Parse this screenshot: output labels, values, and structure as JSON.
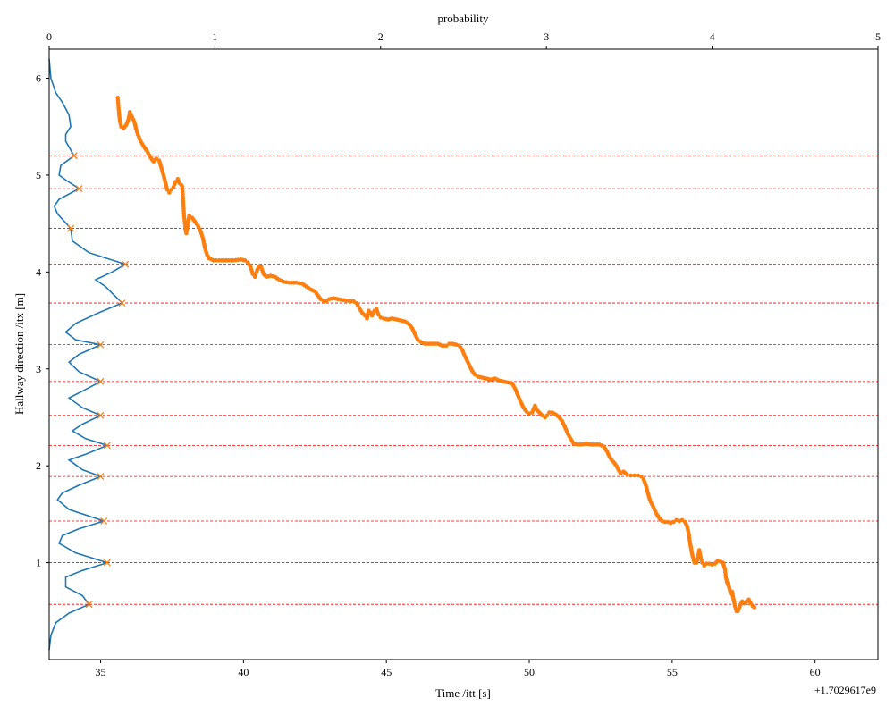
{
  "chart_data": {
    "type": "scatter",
    "xlabel": "Time /itt [s]",
    "ylabel": "Hallway direction /itx [m]",
    "top_xlabel": "probability",
    "x_offset_text": "+1.7029617e9",
    "xlim": [
      33.2,
      62.2
    ],
    "ylim": [
      0.0,
      6.3
    ],
    "top_xlim": [
      0,
      5
    ],
    "x_ticks": [
      35,
      40,
      45,
      50,
      55,
      60
    ],
    "y_ticks": [
      1,
      2,
      3,
      4,
      5,
      6
    ],
    "top_x_ticks": [
      0,
      1,
      2,
      3,
      4,
      5
    ],
    "grid": false,
    "colors": {
      "trajectory": "#ff7f0e",
      "density": "#1f77b4",
      "peaks": "#ff7f0e",
      "reference_lines": "#ff0000"
    },
    "reference_lines_y": [
      5.2,
      4.86,
      4.45,
      4.08,
      3.68,
      3.25,
      2.87,
      2.52,
      2.21,
      1.89,
      1.43,
      1.0,
      0.57
    ],
    "peaks": [
      {
        "y": 5.2,
        "p": 0.15
      },
      {
        "y": 4.86,
        "p": 0.18
      },
      {
        "y": 4.45,
        "p": 0.13
      },
      {
        "y": 4.08,
        "p": 0.46
      },
      {
        "y": 3.68,
        "p": 0.44
      },
      {
        "y": 3.25,
        "p": 0.31
      },
      {
        "y": 2.87,
        "p": 0.31
      },
      {
        "y": 2.52,
        "p": 0.31
      },
      {
        "y": 2.21,
        "p": 0.35
      },
      {
        "y": 1.89,
        "p": 0.31
      },
      {
        "y": 1.43,
        "p": 0.33
      },
      {
        "y": 1.0,
        "p": 0.35
      },
      {
        "y": 0.57,
        "p": 0.24
      }
    ],
    "density_curve": [
      [
        0.0,
        6.2
      ],
      [
        0.01,
        6.0
      ],
      [
        0.04,
        5.85
      ],
      [
        0.08,
        5.75
      ],
      [
        0.12,
        5.62
      ],
      [
        0.13,
        5.5
      ],
      [
        0.1,
        5.42
      ],
      [
        0.1,
        5.35
      ],
      [
        0.15,
        5.2
      ],
      [
        0.07,
        5.1
      ],
      [
        0.06,
        5.0
      ],
      [
        0.1,
        4.95
      ],
      [
        0.18,
        4.86
      ],
      [
        0.06,
        4.75
      ],
      [
        0.03,
        4.68
      ],
      [
        0.05,
        4.6
      ],
      [
        0.13,
        4.45
      ],
      [
        0.14,
        4.32
      ],
      [
        0.24,
        4.2
      ],
      [
        0.46,
        4.08
      ],
      [
        0.38,
        4.0
      ],
      [
        0.28,
        3.92
      ],
      [
        0.34,
        3.85
      ],
      [
        0.38,
        3.78
      ],
      [
        0.44,
        3.68
      ],
      [
        0.3,
        3.58
      ],
      [
        0.16,
        3.47
      ],
      [
        0.1,
        3.38
      ],
      [
        0.16,
        3.3
      ],
      [
        0.31,
        3.25
      ],
      [
        0.18,
        3.15
      ],
      [
        0.12,
        3.07
      ],
      [
        0.18,
        2.97
      ],
      [
        0.31,
        2.87
      ],
      [
        0.2,
        2.77
      ],
      [
        0.12,
        2.7
      ],
      [
        0.2,
        2.6
      ],
      [
        0.31,
        2.52
      ],
      [
        0.2,
        2.43
      ],
      [
        0.14,
        2.36
      ],
      [
        0.22,
        2.28
      ],
      [
        0.35,
        2.21
      ],
      [
        0.22,
        2.12
      ],
      [
        0.12,
        2.06
      ],
      [
        0.2,
        1.96
      ],
      [
        0.31,
        1.89
      ],
      [
        0.18,
        1.8
      ],
      [
        0.08,
        1.72
      ],
      [
        0.05,
        1.65
      ],
      [
        0.12,
        1.55
      ],
      [
        0.33,
        1.43
      ],
      [
        0.18,
        1.35
      ],
      [
        0.08,
        1.28
      ],
      [
        0.06,
        1.2
      ],
      [
        0.16,
        1.1
      ],
      [
        0.35,
        1.0
      ],
      [
        0.2,
        0.92
      ],
      [
        0.1,
        0.85
      ],
      [
        0.1,
        0.75
      ],
      [
        0.2,
        0.66
      ],
      [
        0.24,
        0.57
      ],
      [
        0.12,
        0.48
      ],
      [
        0.04,
        0.38
      ],
      [
        0.01,
        0.25
      ],
      [
        0.0,
        0.1
      ]
    ],
    "trajectory": [
      [
        35.6,
        5.8
      ],
      [
        35.62,
        5.72
      ],
      [
        35.65,
        5.62
      ],
      [
        35.68,
        5.55
      ],
      [
        35.72,
        5.5
      ],
      [
        35.8,
        5.48
      ],
      [
        35.9,
        5.52
      ],
      [
        35.98,
        5.58
      ],
      [
        36.02,
        5.65
      ],
      [
        36.1,
        5.6
      ],
      [
        36.18,
        5.55
      ],
      [
        36.25,
        5.47
      ],
      [
        36.3,
        5.42
      ],
      [
        36.4,
        5.35
      ],
      [
        36.5,
        5.3
      ],
      [
        36.62,
        5.25
      ],
      [
        36.75,
        5.18
      ],
      [
        36.85,
        5.14
      ],
      [
        36.95,
        5.17
      ],
      [
        37.05,
        5.15
      ],
      [
        37.12,
        5.08
      ],
      [
        37.2,
        5.0
      ],
      [
        37.27,
        4.92
      ],
      [
        37.33,
        4.85
      ],
      [
        37.4,
        4.82
      ],
      [
        37.48,
        4.85
      ],
      [
        37.55,
        4.88
      ],
      [
        37.62,
        4.93
      ],
      [
        37.7,
        4.96
      ],
      [
        37.75,
        4.92
      ],
      [
        37.82,
        4.9
      ],
      [
        37.86,
        4.88
      ],
      [
        37.88,
        4.78
      ],
      [
        37.9,
        4.68
      ],
      [
        37.92,
        4.58
      ],
      [
        37.95,
        4.5
      ],
      [
        37.97,
        4.44
      ],
      [
        38.0,
        4.4
      ],
      [
        38.1,
        4.58
      ],
      [
        38.2,
        4.56
      ],
      [
        38.3,
        4.52
      ],
      [
        38.4,
        4.48
      ],
      [
        38.5,
        4.42
      ],
      [
        38.58,
        4.35
      ],
      [
        38.65,
        4.25
      ],
      [
        38.72,
        4.18
      ],
      [
        38.8,
        4.14
      ],
      [
        38.95,
        4.12
      ],
      [
        39.15,
        4.12
      ],
      [
        39.4,
        4.12
      ],
      [
        39.65,
        4.12
      ],
      [
        39.9,
        4.13
      ],
      [
        40.05,
        4.12
      ],
      [
        40.15,
        4.1
      ],
      [
        40.25,
        4.05
      ],
      [
        40.32,
        3.98
      ],
      [
        40.4,
        3.95
      ],
      [
        40.48,
        4.02
      ],
      [
        40.55,
        4.06
      ],
      [
        40.62,
        4.05
      ],
      [
        40.7,
        3.98
      ],
      [
        40.8,
        3.95
      ],
      [
        40.95,
        3.96
      ],
      [
        41.1,
        3.95
      ],
      [
        41.25,
        3.92
      ],
      [
        41.4,
        3.9
      ],
      [
        41.6,
        3.89
      ],
      [
        41.85,
        3.89
      ],
      [
        42.05,
        3.88
      ],
      [
        42.2,
        3.85
      ],
      [
        42.35,
        3.82
      ],
      [
        42.5,
        3.8
      ],
      [
        42.6,
        3.76
      ],
      [
        42.7,
        3.72
      ],
      [
        42.8,
        3.7
      ],
      [
        42.9,
        3.7
      ],
      [
        43.0,
        3.72
      ],
      [
        43.15,
        3.73
      ],
      [
        43.3,
        3.72
      ],
      [
        43.5,
        3.71
      ],
      [
        43.7,
        3.7
      ],
      [
        43.85,
        3.7
      ],
      [
        43.95,
        3.68
      ],
      [
        44.05,
        3.63
      ],
      [
        44.15,
        3.58
      ],
      [
        44.25,
        3.55
      ],
      [
        44.32,
        3.52
      ],
      [
        44.38,
        3.6
      ],
      [
        44.45,
        3.58
      ],
      [
        44.5,
        3.55
      ],
      [
        44.58,
        3.6
      ],
      [
        44.65,
        3.62
      ],
      [
        44.72,
        3.56
      ],
      [
        44.8,
        3.53
      ],
      [
        44.9,
        3.52
      ],
      [
        45.05,
        3.51
      ],
      [
        45.2,
        3.52
      ],
      [
        45.35,
        3.51
      ],
      [
        45.5,
        3.5
      ],
      [
        45.65,
        3.49
      ],
      [
        45.8,
        3.46
      ],
      [
        45.9,
        3.42
      ],
      [
        46.0,
        3.36
      ],
      [
        46.1,
        3.3
      ],
      [
        46.2,
        3.28
      ],
      [
        46.35,
        3.26
      ],
      [
        46.5,
        3.26
      ],
      [
        46.65,
        3.26
      ],
      [
        46.8,
        3.26
      ],
      [
        46.95,
        3.24
      ],
      [
        47.1,
        3.24
      ],
      [
        47.2,
        3.26
      ],
      [
        47.3,
        3.26
      ],
      [
        47.45,
        3.25
      ],
      [
        47.55,
        3.24
      ],
      [
        47.65,
        3.2
      ],
      [
        47.72,
        3.15
      ],
      [
        47.8,
        3.1
      ],
      [
        47.9,
        3.04
      ],
      [
        48.0,
        2.98
      ],
      [
        48.1,
        2.94
      ],
      [
        48.2,
        2.92
      ],
      [
        48.35,
        2.91
      ],
      [
        48.5,
        2.9
      ],
      [
        48.65,
        2.89
      ],
      [
        48.8,
        2.9
      ],
      [
        48.95,
        2.88
      ],
      [
        49.1,
        2.87
      ],
      [
        49.25,
        2.86
      ],
      [
        49.4,
        2.85
      ],
      [
        49.5,
        2.8
      ],
      [
        49.6,
        2.73
      ],
      [
        49.7,
        2.66
      ],
      [
        49.8,
        2.6
      ],
      [
        49.9,
        2.56
      ],
      [
        50.0,
        2.54
      ],
      [
        50.1,
        2.55
      ],
      [
        50.2,
        2.62
      ],
      [
        50.25,
        2.58
      ],
      [
        50.35,
        2.55
      ],
      [
        50.45,
        2.52
      ],
      [
        50.55,
        2.5
      ],
      [
        50.62,
        2.52
      ],
      [
        50.7,
        2.55
      ],
      [
        50.8,
        2.55
      ],
      [
        50.92,
        2.53
      ],
      [
        51.05,
        2.5
      ],
      [
        51.15,
        2.46
      ],
      [
        51.25,
        2.4
      ],
      [
        51.35,
        2.33
      ],
      [
        51.45,
        2.28
      ],
      [
        51.55,
        2.23
      ],
      [
        51.7,
        2.22
      ],
      [
        51.85,
        2.22
      ],
      [
        52.0,
        2.23
      ],
      [
        52.15,
        2.22
      ],
      [
        52.3,
        2.22
      ],
      [
        52.45,
        2.22
      ],
      [
        52.6,
        2.2
      ],
      [
        52.72,
        2.15
      ],
      [
        52.8,
        2.1
      ],
      [
        52.88,
        2.06
      ],
      [
        52.95,
        2.04
      ],
      [
        53.05,
        2.0
      ],
      [
        53.12,
        1.96
      ],
      [
        53.2,
        1.92
      ],
      [
        53.3,
        1.94
      ],
      [
        53.42,
        1.91
      ],
      [
        53.55,
        1.9
      ],
      [
        53.68,
        1.9
      ],
      [
        53.8,
        1.9
      ],
      [
        53.92,
        1.89
      ],
      [
        54.0,
        1.86
      ],
      [
        54.08,
        1.8
      ],
      [
        54.15,
        1.72
      ],
      [
        54.22,
        1.65
      ],
      [
        54.3,
        1.6
      ],
      [
        54.38,
        1.55
      ],
      [
        54.46,
        1.5
      ],
      [
        54.55,
        1.46
      ],
      [
        54.65,
        1.43
      ],
      [
        54.75,
        1.42
      ],
      [
        54.85,
        1.42
      ],
      [
        54.95,
        1.41
      ],
      [
        55.05,
        1.42
      ],
      [
        55.15,
        1.44
      ],
      [
        55.25,
        1.43
      ],
      [
        55.35,
        1.44
      ],
      [
        55.45,
        1.42
      ],
      [
        55.52,
        1.38
      ],
      [
        55.58,
        1.3
      ],
      [
        55.63,
        1.2
      ],
      [
        55.68,
        1.12
      ],
      [
        55.72,
        1.06
      ],
      [
        55.78,
        1.0
      ],
      [
        55.85,
        1.0
      ],
      [
        55.9,
        1.05
      ],
      [
        55.95,
        1.13
      ],
      [
        56.0,
        1.05
      ],
      [
        56.05,
        1.0
      ],
      [
        56.12,
        0.97
      ],
      [
        56.2,
        0.99
      ],
      [
        56.3,
        0.99
      ],
      [
        56.4,
        0.98
      ],
      [
        56.5,
        0.99
      ],
      [
        56.6,
        1.02
      ],
      [
        56.7,
        1.01
      ],
      [
        56.78,
        1.0
      ],
      [
        56.85,
        0.93
      ],
      [
        56.88,
        0.85
      ],
      [
        56.92,
        0.8
      ],
      [
        56.98,
        0.76
      ],
      [
        57.02,
        0.72
      ],
      [
        57.05,
        0.68
      ],
      [
        57.1,
        0.7
      ],
      [
        57.15,
        0.62
      ],
      [
        57.2,
        0.55
      ],
      [
        57.25,
        0.5
      ],
      [
        57.3,
        0.5
      ],
      [
        57.38,
        0.56
      ],
      [
        57.45,
        0.6
      ],
      [
        57.52,
        0.58
      ],
      [
        57.6,
        0.6
      ],
      [
        57.68,
        0.62
      ],
      [
        57.75,
        0.58
      ],
      [
        57.82,
        0.55
      ],
      [
        57.88,
        0.54
      ]
    ]
  }
}
